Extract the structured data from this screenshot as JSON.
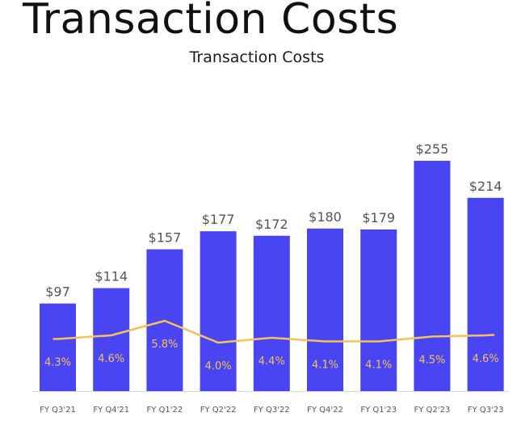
{
  "page": {
    "title": "Transaction Costs"
  },
  "chart_data": {
    "type": "bar",
    "title": "Transaction Costs",
    "categories": [
      "FY Q3'21",
      "FY Q4'21",
      "FY Q1'22",
      "FY Q2'22",
      "FY Q3'22",
      "FY Q4'22",
      "FY Q1'23",
      "FY Q2'23",
      "FY Q3'23"
    ],
    "series": [
      {
        "type": "bar",
        "values": [
          97,
          114,
          157,
          177,
          172,
          180,
          179,
          255,
          214
        ],
        "labels": [
          "$97",
          "$114",
          "$157",
          "$177",
          "$172",
          "$180",
          "$179",
          "$255",
          "$214"
        ],
        "color": "#4a45f2"
      },
      {
        "type": "line",
        "values": [
          4.3,
          4.6,
          5.8,
          4.0,
          4.4,
          4.1,
          4.1,
          4.5,
          4.6
        ],
        "labels": [
          "4.3%",
          "4.6%",
          "5.8%",
          "4.0%",
          "4.4%",
          "4.1%",
          "4.1%",
          "4.5%",
          "4.6%"
        ],
        "color": "#f5c15a"
      }
    ],
    "bar_ylim": [
      0,
      270
    ],
    "line_ylim": [
      0,
      20
    ],
    "grid": false,
    "legend": "none",
    "colors": {
      "bar_value_text": "#555555",
      "pct_text": "#f5c15a",
      "tick_text": "#555555",
      "axis": "#d9d9d9"
    }
  }
}
